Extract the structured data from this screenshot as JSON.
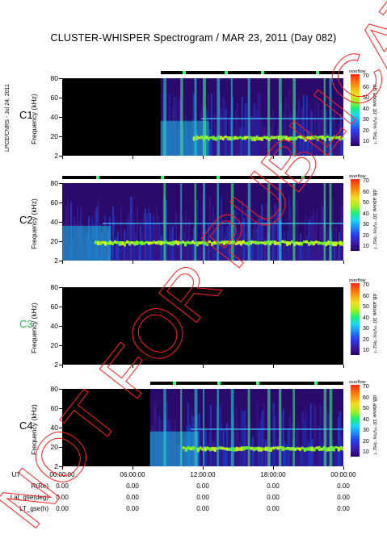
{
  "chart_data": {
    "type": "heatmap",
    "title": "CLUSTER-WHISPER Spectrogram / MAR 23, 2011 (Day 082)",
    "credit": "LPCE/CNRS - Jul 24, 2011",
    "ylabel": "Frequency (kHz)",
    "yticks": [
      "80",
      "60",
      "40",
      "20",
      "2"
    ],
    "ylim": [
      2,
      80
    ],
    "xticks": [
      "00:00:00",
      "06:00:00",
      "12:00:00",
      "18:00:00",
      "00:00:00"
    ],
    "colorbar": {
      "label": "dB above 10⁻⁸V²m⁻²Hz⁻¹",
      "ticks": [
        "70",
        "60",
        "50",
        "40",
        "30",
        "20",
        "10"
      ],
      "overflow_label": "overflow",
      "range": [
        10,
        70
      ]
    },
    "panels": [
      {
        "name": "C1",
        "name_color": "#000000",
        "data_start_hour": 8.4,
        "has_data": true
      },
      {
        "name": "C2",
        "name_color": "#000000",
        "data_start_hour": 0.0,
        "has_data": true
      },
      {
        "name": "C3",
        "name_color": "#22bb44",
        "data_start_hour": null,
        "has_data": false
      },
      {
        "name": "C4",
        "name_color": "#000000",
        "data_start_hour": 7.5,
        "has_data": true
      }
    ],
    "orbit_table": {
      "rows": [
        {
          "label": "UT",
          "values": [
            "00:00:00",
            "06:00:00",
            "12:00:00",
            "18:00:00",
            "00:00:00"
          ]
        },
        {
          "label": "R(Re)",
          "values": [
            "0.00",
            "0.00",
            "0.00",
            "0.00",
            "0.00"
          ]
        },
        {
          "label": "Lat_gse(deg)",
          "values": [
            "0.00",
            "0.00",
            "0.00",
            "0.00",
            "0.00"
          ]
        },
        {
          "label": "LT_gse(h)",
          "values": [
            "0.00",
            "0.00",
            "0.00",
            "0.00",
            "0.00"
          ]
        }
      ]
    },
    "watermark": "NOT FOR PUBLICATION"
  }
}
